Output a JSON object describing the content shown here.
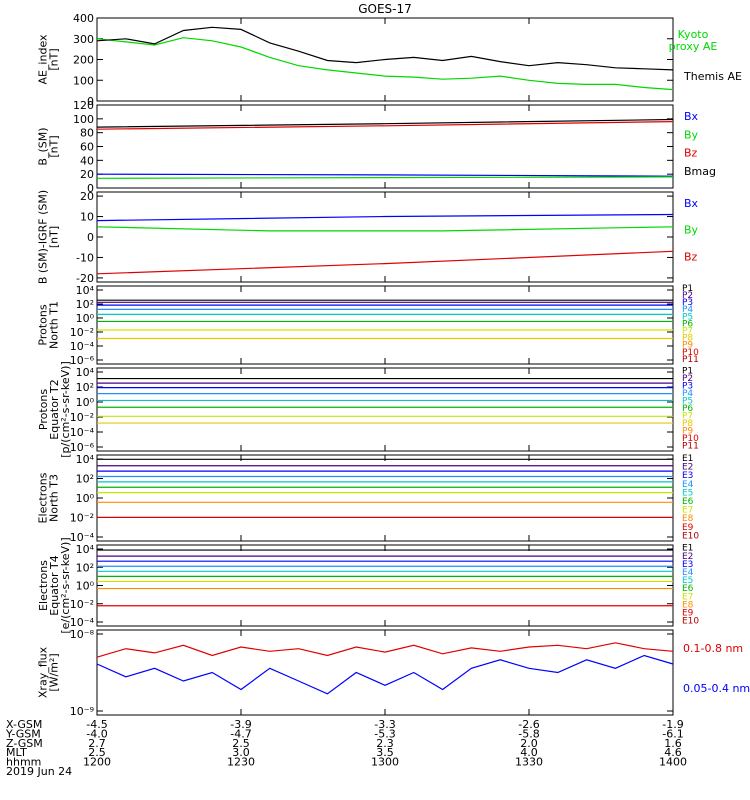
{
  "title": "GOES-17",
  "colors": {
    "black": "#000000",
    "green": "#00d800",
    "blue": "#0000ff",
    "red": "#e00000"
  },
  "chart_data": [
    {
      "type": "line",
      "ylabel": [
        "AE_index",
        "[nT]"
      ],
      "ylim": [
        0,
        400
      ],
      "yticks": [
        "0",
        "100",
        "200",
        "300",
        "400"
      ],
      "series": [
        {
          "name": "Kyoto proxy AE",
          "label_lines": [
            "Kyoto",
            "proxy AE"
          ],
          "color": "#00d800",
          "x": [
            0,
            0.05,
            0.1,
            0.15,
            0.2,
            0.25,
            0.3,
            0.35,
            0.4,
            0.45,
            0.5,
            0.55,
            0.6,
            0.65,
            0.7,
            0.75,
            0.8,
            0.85,
            0.9,
            0.95,
            1
          ],
          "values": [
            300,
            285,
            270,
            305,
            290,
            260,
            210,
            170,
            150,
            135,
            120,
            115,
            105,
            110,
            120,
            100,
            85,
            80,
            80,
            65,
            55
          ]
        },
        {
          "name": "Themis AE",
          "label_lines": [
            "Themis AE"
          ],
          "color": "#000000",
          "x": [
            0,
            0.05,
            0.1,
            0.15,
            0.2,
            0.25,
            0.3,
            0.35,
            0.4,
            0.45,
            0.5,
            0.55,
            0.6,
            0.65,
            0.7,
            0.75,
            0.8,
            0.85,
            0.9,
            0.95,
            1
          ],
          "values": [
            290,
            300,
            275,
            340,
            355,
            345,
            280,
            240,
            195,
            185,
            200,
            210,
            195,
            215,
            190,
            170,
            185,
            175,
            160,
            155,
            150
          ]
        }
      ]
    },
    {
      "type": "line",
      "ylabel": [
        "B_(SM)",
        "[nT]"
      ],
      "ylim": [
        0,
        120
      ],
      "yticks": [
        "0",
        "20",
        "40",
        "60",
        "80",
        "100",
        "120"
      ],
      "series": [
        {
          "name": "Bx",
          "color": "#0000ff",
          "x": [
            0,
            0.5,
            1
          ],
          "values": [
            20,
            19,
            17
          ]
        },
        {
          "name": "By",
          "color": "#00d800",
          "x": [
            0,
            0.5,
            1
          ],
          "values": [
            14,
            15,
            16
          ]
        },
        {
          "name": "Bz",
          "color": "#e00000",
          "x": [
            0,
            0.5,
            1
          ],
          "values": [
            85,
            90,
            96
          ]
        },
        {
          "name": "Bmag",
          "color": "#000000",
          "x": [
            0,
            0.5,
            1
          ],
          "values": [
            88,
            93,
            99
          ]
        }
      ]
    },
    {
      "type": "line",
      "ylabel": [
        "B (SM)-IGRF (SM)",
        "[nT]"
      ],
      "ylim": [
        -22,
        22
      ],
      "yticks": [
        "-20",
        "-10",
        "0",
        "10",
        "20"
      ],
      "series": [
        {
          "name": "Bx",
          "color": "#0000ff",
          "x": [
            0,
            0.5,
            1
          ],
          "values": [
            8,
            10,
            11
          ]
        },
        {
          "name": "By",
          "color": "#00d800",
          "x": [
            0,
            0.3,
            0.6,
            1
          ],
          "values": [
            5,
            3,
            3,
            5
          ]
        },
        {
          "name": "Bz",
          "color": "#e00000",
          "x": [
            0,
            0.5,
            1
          ],
          "values": [
            -18,
            -13,
            -7
          ]
        }
      ]
    },
    {
      "type": "line",
      "log": true,
      "ylabel": [
        "Protons",
        "North T1"
      ],
      "ylim": [
        -7,
        4
      ],
      "yticks": [
        "10⁴",
        "10²",
        "10⁰",
        "10⁻²",
        "10⁻⁴",
        "10⁻⁶"
      ],
      "series": [
        {
          "name": "P1",
          "color": "#000000",
          "values": [
            2.0
          ]
        },
        {
          "name": "P2",
          "color": "#4b0082",
          "values": [
            1.7
          ]
        },
        {
          "name": "P3",
          "color": "#0000ff",
          "values": [
            1.3
          ]
        },
        {
          "name": "P4",
          "color": "#1e90ff",
          "values": [
            0.7
          ]
        },
        {
          "name": "P5",
          "color": "#00c8c8",
          "values": [
            0.0
          ]
        },
        {
          "name": "P6",
          "color": "#00b400",
          "values": [
            -1.0
          ]
        },
        {
          "name": "P7",
          "color": "#c8e600",
          "values": [
            -2.2
          ]
        },
        {
          "name": "P8",
          "color": "#e6c800",
          "values": [
            -3.4
          ]
        },
        {
          "name": "P9",
          "color": "#ff8c00",
          "values": []
        },
        {
          "name": "P10",
          "color": "#e00000",
          "values": []
        },
        {
          "name": "P11",
          "color": "#b00000",
          "values": []
        }
      ]
    },
    {
      "type": "line",
      "log": true,
      "ylabel": [
        "Protons",
        "Equator T2",
        "[p/(cm²-s-sr-keV)]"
      ],
      "ylim": [
        -7,
        4
      ],
      "yticks": [
        "10⁴",
        "10²",
        "10⁰",
        "10⁻²",
        "10⁻⁴",
        "10⁻⁶"
      ],
      "series": [
        {
          "name": "P1",
          "color": "#000000",
          "values": [
            2.6
          ]
        },
        {
          "name": "P2",
          "color": "#4b0082",
          "values": [
            2.0
          ]
        },
        {
          "name": "P3",
          "color": "#0000ff",
          "values": [
            1.4
          ]
        },
        {
          "name": "P4",
          "color": "#1e90ff",
          "values": [
            0.6
          ]
        },
        {
          "name": "P5",
          "color": "#00c8c8",
          "values": [
            -0.3
          ]
        },
        {
          "name": "P6",
          "color": "#00b400",
          "values": [
            -1.2
          ]
        },
        {
          "name": "P7",
          "color": "#c8e600",
          "values": [
            -2.4
          ]
        },
        {
          "name": "P8",
          "color": "#e6c800",
          "values": [
            -3.3
          ]
        },
        {
          "name": "P9",
          "color": "#ff8c00",
          "values": []
        },
        {
          "name": "P10",
          "color": "#e00000",
          "values": []
        },
        {
          "name": "P11",
          "color": "#b00000",
          "values": []
        }
      ]
    },
    {
      "type": "line",
      "log": true,
      "ylabel": [
        "Electrons",
        "North T3"
      ],
      "ylim": [
        -4,
        4
      ],
      "yticks": [
        "10⁴",
        "10²",
        "10⁰",
        "10⁻²",
        "10⁻⁴"
      ],
      "series": [
        {
          "name": "E1",
          "color": "#000000",
          "values": [
            3.6
          ]
        },
        {
          "name": "E2",
          "color": "#4b0082",
          "values": [
            3.0
          ]
        },
        {
          "name": "E3",
          "color": "#0000ff",
          "values": [
            2.5
          ]
        },
        {
          "name": "E4",
          "color": "#1e90ff",
          "values": [
            2.0
          ]
        },
        {
          "name": "E5",
          "color": "#00c8c8",
          "values": [
            1.5
          ]
        },
        {
          "name": "E6",
          "color": "#00b400",
          "values": [
            1.0
          ]
        },
        {
          "name": "E7",
          "color": "#c8e600",
          "values": [
            0.5
          ]
        },
        {
          "name": "E8",
          "color": "#ff8c00",
          "values": [
            -0.4
          ]
        },
        {
          "name": "E9",
          "color": "#e00000",
          "values": [
            -1.8
          ]
        },
        {
          "name": "E10",
          "color": "#b00000",
          "values": []
        }
      ]
    },
    {
      "type": "line",
      "log": true,
      "ylabel": [
        "Electrons",
        "Equator T4",
        "[e/(cm²-s-sr-keV)]"
      ],
      "ylim": [
        -4,
        4
      ],
      "yticks": [
        "10⁴",
        "10²",
        "10⁰",
        "10⁻²",
        "10⁻⁴"
      ],
      "series": [
        {
          "name": "E1",
          "color": "#000000",
          "values": [
            3.5
          ]
        },
        {
          "name": "E2",
          "color": "#4b0082",
          "values": [
            2.9
          ]
        },
        {
          "name": "E3",
          "color": "#0000ff",
          "values": [
            2.4
          ]
        },
        {
          "name": "E4",
          "color": "#1e90ff",
          "values": [
            1.9
          ]
        },
        {
          "name": "E5",
          "color": "#00c8c8",
          "values": [
            1.4
          ]
        },
        {
          "name": "E6",
          "color": "#00b400",
          "values": [
            0.9
          ]
        },
        {
          "name": "E7",
          "color": "#c8e600",
          "values": [
            0.4
          ]
        },
        {
          "name": "E8",
          "color": "#ff8c00",
          "values": [
            -0.3
          ]
        },
        {
          "name": "E9",
          "color": "#e00000",
          "values": [
            -2.0
          ]
        },
        {
          "name": "E10",
          "color": "#b00000",
          "values": []
        }
      ]
    },
    {
      "type": "line",
      "log": true,
      "ylabel": [
        "Xray_flux",
        "[W/m²]"
      ],
      "ylim": [
        -9,
        -8
      ],
      "yticks": [
        "10⁻⁸",
        "10⁻⁹"
      ],
      "series": [
        {
          "name": "0.1-0.8 nm",
          "color": "#e00000",
          "x": [
            0,
            0.05,
            0.1,
            0.15,
            0.2,
            0.25,
            0.3,
            0.35,
            0.4,
            0.45,
            0.5,
            0.55,
            0.6,
            0.65,
            0.7,
            0.75,
            0.8,
            0.85,
            0.9,
            0.95,
            1
          ],
          "values": [
            -8.32,
            -8.22,
            -8.27,
            -8.18,
            -8.3,
            -8.2,
            -8.25,
            -8.22,
            -8.3,
            -8.2,
            -8.26,
            -8.18,
            -8.28,
            -8.21,
            -8.25,
            -8.2,
            -8.18,
            -8.22,
            -8.15,
            -8.22,
            -8.25
          ]
        },
        {
          "name": "0.05-0.4 nm",
          "color": "#0000ff",
          "x": [
            0,
            0.05,
            0.1,
            0.15,
            0.2,
            0.25,
            0.3,
            0.35,
            0.4,
            0.45,
            0.5,
            0.55,
            0.6,
            0.65,
            0.7,
            0.75,
            0.8,
            0.85,
            0.9,
            0.95,
            1
          ],
          "values": [
            -8.4,
            -8.55,
            -8.45,
            -8.6,
            -8.5,
            -8.7,
            -8.45,
            -8.6,
            -8.75,
            -8.5,
            -8.65,
            -8.5,
            -8.7,
            -8.45,
            -8.35,
            -8.45,
            -8.5,
            -8.35,
            -8.45,
            -8.3,
            -8.4
          ]
        }
      ]
    }
  ],
  "footer": {
    "row_labels": [
      "X-GSM",
      "Y-GSM",
      "Z-GSM",
      "MLT",
      "hhmm",
      "2019 Jun 24"
    ],
    "columns": [
      [
        "-4.5",
        "-4.0",
        "2.7",
        "2.5",
        "1200"
      ],
      [
        "-3.9",
        "-4.7",
        "2.5",
        "3.0",
        "1230"
      ],
      [
        "-3.3",
        "-5.3",
        "2.3",
        "3.5",
        "1300"
      ],
      [
        "-2.6",
        "-5.8",
        "2.0",
        "4.0",
        "1330"
      ],
      [
        "-1.9",
        "-6.1",
        "1.6",
        "4.6",
        "1400"
      ]
    ]
  }
}
